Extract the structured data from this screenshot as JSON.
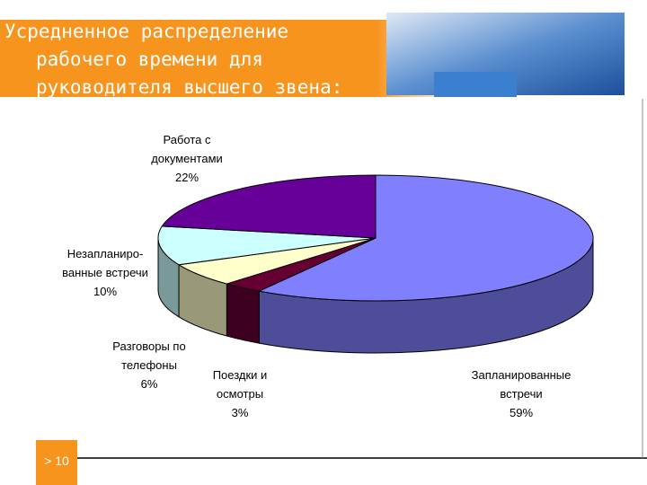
{
  "title": "Усредненное распределение рабочего времени для руководителя высшего звена:",
  "slide_number": "> 10",
  "chart_data": {
    "type": "pie3d",
    "categories": [
      "Запланированные встречи",
      "Поездки и осмотры",
      "Разговоры по телефоны",
      "Незапланиро-ванные встречи",
      "Работа с документами"
    ],
    "values": [
      59,
      3,
      6,
      10,
      22
    ],
    "value_labels": [
      "59%",
      "3%",
      "6%",
      "10%",
      "22%"
    ],
    "colors": [
      "#8080ff",
      "#660033",
      "#ffffcc",
      "#ccffff",
      "#660099"
    ]
  }
}
